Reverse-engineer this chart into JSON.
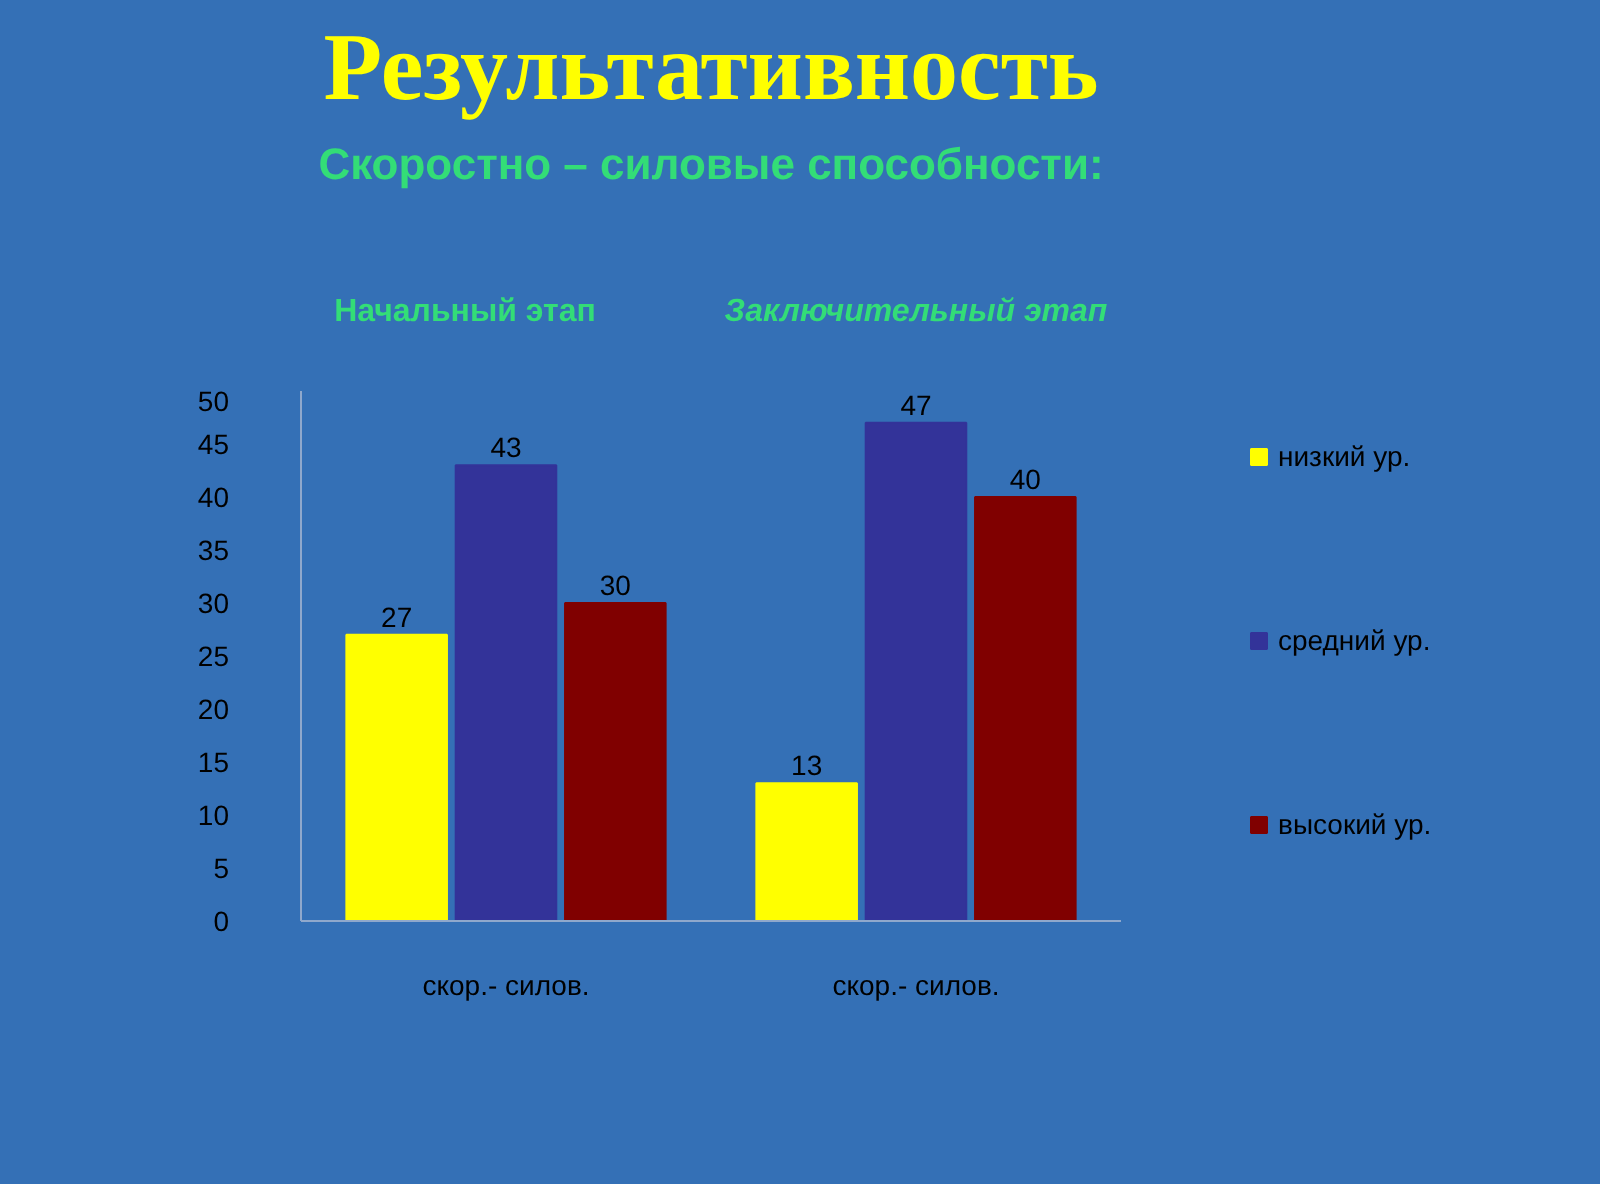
{
  "chart_data": {
    "type": "bar",
    "title": "Результативность",
    "subtitle": "Скоростно – силовые способности:",
    "annotations": [
      "Начальный этап",
      "Заключительный этап"
    ],
    "categories": [
      "скор.- силов.",
      "скор.- силов."
    ],
    "series": [
      {
        "name": "низкий ур.",
        "color": "#ffff00",
        "values": [
          27,
          13
        ]
      },
      {
        "name": "средний ур.",
        "color": "#333399",
        "values": [
          43,
          47
        ]
      },
      {
        "name": "высокий ур.",
        "color": "#800000",
        "values": [
          30,
          40
        ]
      }
    ],
    "ylim": [
      0,
      50
    ],
    "yticks": [
      0,
      5,
      10,
      15,
      20,
      25,
      30,
      35,
      40,
      45,
      50
    ],
    "data_labels": true,
    "legend": "right"
  }
}
